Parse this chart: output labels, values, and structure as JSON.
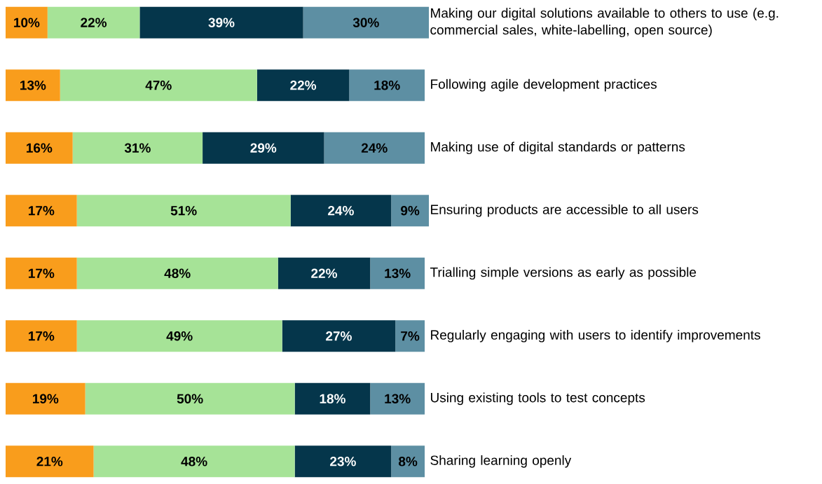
{
  "chart_data": {
    "type": "bar",
    "orientation": "horizontal",
    "stacked": true,
    "xlim": [
      0,
      101
    ],
    "categories": [
      "Making our digital solutions available to others to use (e.g. commercial sales, white-labelling, open source)",
      "Following agile development practices",
      "Making use of digital standards or patterns",
      "Ensuring products are accessible to all users",
      "Trialling simple versions as early as possible",
      "Regularly engaging with users to identify improvements",
      "Using existing tools to test concepts",
      "Sharing learning openly"
    ],
    "series": [
      {
        "color": "#f99d1c",
        "values": [
          10,
          13,
          16,
          17,
          17,
          17,
          19,
          21
        ],
        "value_labels": [
          "10%",
          "13%",
          "16%",
          "17%",
          "17%",
          "17%",
          "19%",
          "21%"
        ]
      },
      {
        "color": "#a6e397",
        "values": [
          22,
          47,
          31,
          51,
          48,
          49,
          50,
          48
        ],
        "value_labels": [
          "22%",
          "47%",
          "31%",
          "51%",
          "48%",
          "49%",
          "50%",
          "48%"
        ]
      },
      {
        "color": "#05364b",
        "values": [
          39,
          22,
          29,
          24,
          22,
          27,
          18,
          23
        ],
        "value_labels": [
          "39%",
          "22%",
          "29%",
          "24%",
          "22%",
          "27%",
          "18%",
          "23%"
        ]
      },
      {
        "color": "#5d8fa3",
        "values": [
          30,
          18,
          24,
          9,
          13,
          7,
          13,
          8
        ],
        "value_labels": [
          "30%",
          "18%",
          "24%",
          "9%",
          "13%",
          "7%",
          "13%",
          "8%"
        ]
      }
    ]
  }
}
